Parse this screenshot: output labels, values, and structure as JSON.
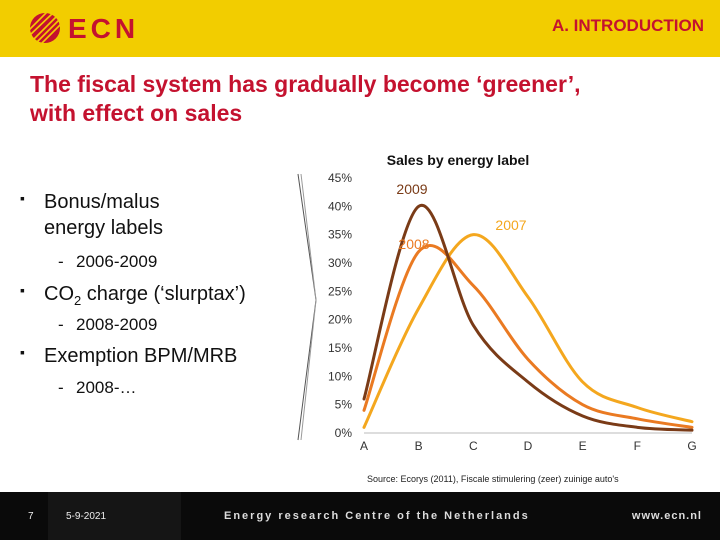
{
  "header": {
    "section_title": "A. INTRODUCTION",
    "logo_text": "ECN",
    "background_color": "#f2cd00",
    "accent_color": "#c4122f"
  },
  "title": {
    "line1": "The fiscal system has gradually become ‘greener’,",
    "line2": "with effect on sales"
  },
  "bullets": [
    {
      "text": "Bonus/malus",
      "text_cont": "energy labels",
      "sub": "2006-2009"
    },
    {
      "text_pre": "CO",
      "text_sub": "2",
      "text_post": " charge (‘slurptax’)",
      "sub": "2008-2009"
    },
    {
      "text": "Exemption BPM/MRB",
      "sub": "2008-…"
    }
  ],
  "chart_data": {
    "type": "line",
    "title": "Sales by energy label",
    "categories": [
      "A",
      "B",
      "C",
      "D",
      "E",
      "F",
      "G"
    ],
    "ylim": [
      0,
      45
    ],
    "yticks": [
      0,
      5,
      10,
      15,
      20,
      25,
      30,
      35,
      40,
      45
    ],
    "ytick_labels": [
      "0%",
      "5%",
      "10%",
      "15%",
      "20%",
      "25%",
      "30%",
      "35%",
      "40%",
      "45%"
    ],
    "series": [
      {
        "name": "2009",
        "color": "#7a3b17",
        "values": [
          6,
          40,
          19,
          9,
          3,
          1,
          0.5
        ]
      },
      {
        "name": "2008",
        "color": "#ea7a22",
        "values": [
          4,
          32,
          26,
          13,
          5,
          2.5,
          1
        ]
      },
      {
        "name": "2007",
        "color": "#f4a71e",
        "values": [
          1,
          22,
          35,
          24,
          9,
          4.5,
          2
        ]
      }
    ],
    "source": "Source: Ecorys (2011), Fiscale stimulering (zeer) zuinige auto's"
  },
  "footer": {
    "page_number": "7",
    "date": "5-9-2021",
    "organization": "Energy research Centre of the Netherlands",
    "url": "www.ecn.nl"
  }
}
